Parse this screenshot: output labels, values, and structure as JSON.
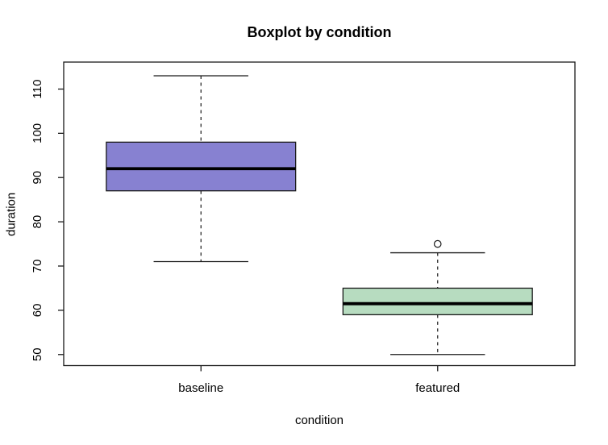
{
  "chart_data": {
    "type": "boxplot",
    "title": "Boxplot by condition",
    "xlabel": "condition",
    "ylabel": "duration",
    "categories": [
      "baseline",
      "featured"
    ],
    "y_axis": {
      "ticks": [
        50,
        60,
        70,
        80,
        90,
        100,
        110
      ],
      "range": [
        47.5,
        116.1
      ]
    },
    "series": [
      {
        "name": "baseline",
        "whisker_low": 71,
        "q1": 87,
        "median": 92,
        "q3": 98,
        "whisker_high": 113,
        "outliers": [],
        "fill": "#8781D1"
      },
      {
        "name": "featured",
        "whisker_low": 50,
        "q1": 59,
        "median": 61.5,
        "q3": 65,
        "whisker_high": 73,
        "outliers": [
          75
        ],
        "fill": "#B7DCC0"
      }
    ],
    "layout": {
      "grid": false,
      "legend": "none",
      "frame": true
    },
    "colors": {
      "box_border": "#1a1a1a",
      "median": "#000000",
      "axis": "#1a1a1a",
      "background": "#ffffff"
    }
  }
}
